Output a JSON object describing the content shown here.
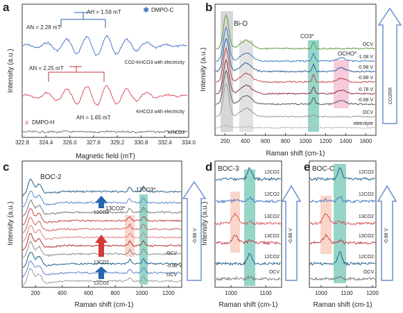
{
  "chart_data": [
    {
      "panel": "a",
      "type": "line",
      "xlabel": "Magnetic field (mT)",
      "ylabel": "Intensity (a.u.)",
      "xlim": [
        322.8,
        334.0
      ],
      "xticks": [
        "322.8",
        "324.4",
        "326.0",
        "327.6",
        "329.2",
        "330.8",
        "332.4",
        "334.0"
      ],
      "series": [
        {
          "name": "CO2-KHCO3 with electricity",
          "color": "#4a77c4"
        },
        {
          "name": "KHCO3 with electricity",
          "color": "#d9545f"
        },
        {
          "name": "KHCO3",
          "color": "#777777"
        }
      ],
      "legend": [
        "DMPO-C",
        "DMPO-H"
      ],
      "annotations": [
        "AH = 1.59 mT",
        "AN = 2.28 mT",
        "AN = 2.25 mT",
        "AH = 1.65 mT"
      ],
      "curve_labels": [
        "CO2-KHCO3 with electricity",
        "KHCO3 with electricity",
        "KHCO3"
      ]
    },
    {
      "panel": "b",
      "type": "line",
      "xlabel": "Raman shift (cm-1)",
      "ylabel": "Intensity (a.u.)",
      "xlim": [
        100,
        1700
      ],
      "xticks": [
        "200",
        "400",
        "600",
        "800",
        "1000",
        "1200",
        "1400",
        "1600"
      ],
      "band_labels": [
        "Bi-O",
        "CO3*",
        "OCHO*"
      ],
      "curve_labels": [
        "OCV",
        "-1.08 V",
        "-0.98 V",
        "-0.88 V",
        "-0.78 V",
        "-0.68 V",
        "OCV",
        "eletrolyte"
      ],
      "arrow_label": "CO2RR",
      "series_colors": [
        "#5a9b3a",
        "#3c78c0",
        "#2b5f9a",
        "#c2464c",
        "#8a3040",
        "#555555",
        "#999999",
        "#bbbbbb"
      ]
    },
    {
      "panel": "c",
      "type": "line",
      "title": "BOC-2",
      "xlabel": "Raman shift (cm-1)",
      "ylabel": "Intensity (a.u.)",
      "xlim": [
        100,
        1300
      ],
      "xticks": [
        "200",
        "400",
        "600",
        "800",
        "1000",
        "1200"
      ],
      "annotations": [
        "13CO3*",
        "12CO3*"
      ],
      "arrow_labels": [
        "12CO2",
        "13CO2",
        "12CO2"
      ],
      "curve_labels": [
        "OCV",
        "-0.88 V",
        "OCV"
      ],
      "side_label": "-0.88 V"
    },
    {
      "panel": "d",
      "type": "line",
      "title": "BOC-3",
      "xlabel": "Raman shift (cm-1)",
      "ylabel": "Intensity (a.u.)",
      "xticks": [
        "1000",
        "1100"
      ],
      "curve_labels": [
        "12CO2",
        "12CO2",
        "13CO2",
        "13CO2",
        "12CO2",
        "OCV"
      ],
      "side_label": "-0.88 V"
    },
    {
      "panel": "e",
      "type": "line",
      "title": "BOC-C",
      "xlabel": "Raman shift (cm-1)",
      "xticks": [
        "1000",
        "1100",
        "1200"
      ],
      "curve_labels": [
        "12CO2",
        "12CO2",
        "13CO2",
        "13CO2",
        "12CO2",
        "OCV"
      ],
      "side_label": "-0.88 V"
    }
  ]
}
